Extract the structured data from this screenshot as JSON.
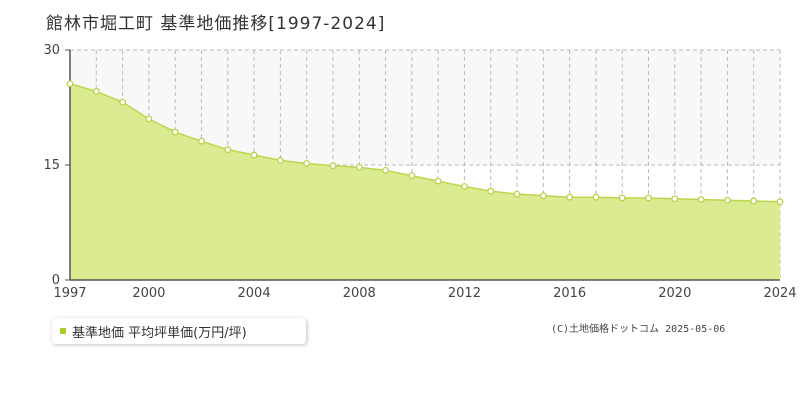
{
  "title": "館林市堀工町  基準地価推移[1997-2024]",
  "legend_label": "基準地価 平均坪単価(万円/坪)",
  "credit": "(C)土地価格ドットコム 2025-05-06",
  "colors": {
    "fill": "#dbeb91",
    "line": "#bcd74c",
    "marker_fill": "#ffffff",
    "marker_stroke": "#b3d13f",
    "axis": "#555555",
    "grid": "#bbbbbb",
    "band": "#f8f8f8",
    "legend_swatch": "#a8cc2a"
  },
  "chart_data": {
    "type": "area",
    "xlim": [
      1997,
      2024
    ],
    "ylim": [
      0,
      30
    ],
    "y_ticks": [
      "0",
      "15",
      "30"
    ],
    "x_ticks": [
      "1997",
      "2000",
      "2004",
      "2008",
      "2012",
      "2016",
      "2020",
      "2024"
    ],
    "grid": true,
    "series": [
      {
        "name": "基準地価 平均坪単価(万円/坪)",
        "x": [
          1997,
          1998,
          1999,
          2000,
          2001,
          2002,
          2003,
          2004,
          2005,
          2006,
          2007,
          2008,
          2009,
          2010,
          2011,
          2012,
          2013,
          2014,
          2015,
          2016,
          2017,
          2018,
          2019,
          2020,
          2021,
          2022,
          2023,
          2024
        ],
        "values": [
          25.6,
          24.6,
          23.2,
          21.0,
          19.3,
          18.1,
          17.0,
          16.3,
          15.6,
          15.2,
          14.9,
          14.7,
          14.3,
          13.6,
          12.9,
          12.2,
          11.6,
          11.2,
          11.0,
          10.8,
          10.8,
          10.7,
          10.7,
          10.6,
          10.5,
          10.4,
          10.3,
          10.2
        ]
      }
    ]
  }
}
